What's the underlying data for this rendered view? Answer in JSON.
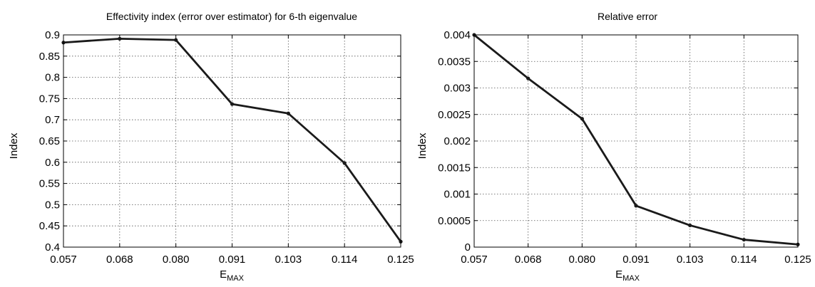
{
  "chart_data": [
    {
      "type": "line",
      "title": "Effectivity index (error over estimator) for 6-th eigenvalue",
      "xlabel": "E",
      "xlabel_sub": "MAX",
      "ylabel": "Index",
      "x_ticks": [
        "0.057",
        "0.068",
        "0.080",
        "0.091",
        "0.103",
        "0.114",
        "0.125"
      ],
      "y_ticks": [
        "0.9",
        "0.85",
        "0.8",
        "0.75",
        "0.7",
        "0.65",
        "0.6",
        "0.55",
        "0.5",
        "0.45",
        "0.4"
      ],
      "ylim": [
        0.4,
        0.9
      ],
      "grid": true,
      "series": [
        {
          "values": [
            0.882,
            0.891,
            0.888,
            0.737,
            0.715,
            0.598,
            0.413
          ],
          "color": "#1a1a1a"
        }
      ]
    },
    {
      "type": "line",
      "title": "Relative error",
      "xlabel": "E",
      "xlabel_sub": "MAX",
      "ylabel": "Index",
      "x_ticks": [
        "0.057",
        "0.068",
        "0.080",
        "0.091",
        "0.103",
        "0.114",
        "0.125"
      ],
      "y_ticks": [
        "0.004",
        "0.0035",
        "0.003",
        "0.0025",
        "0.002",
        "0.0015",
        "0.001",
        "0.0005",
        "0"
      ],
      "ylim": [
        0,
        0.004
      ],
      "grid": true,
      "series": [
        {
          "values": [
            0.004,
            0.00318,
            0.00242,
            0.00078,
            0.00041,
            0.00014,
            5e-05
          ],
          "color": "#1a1a1a"
        }
      ]
    }
  ]
}
